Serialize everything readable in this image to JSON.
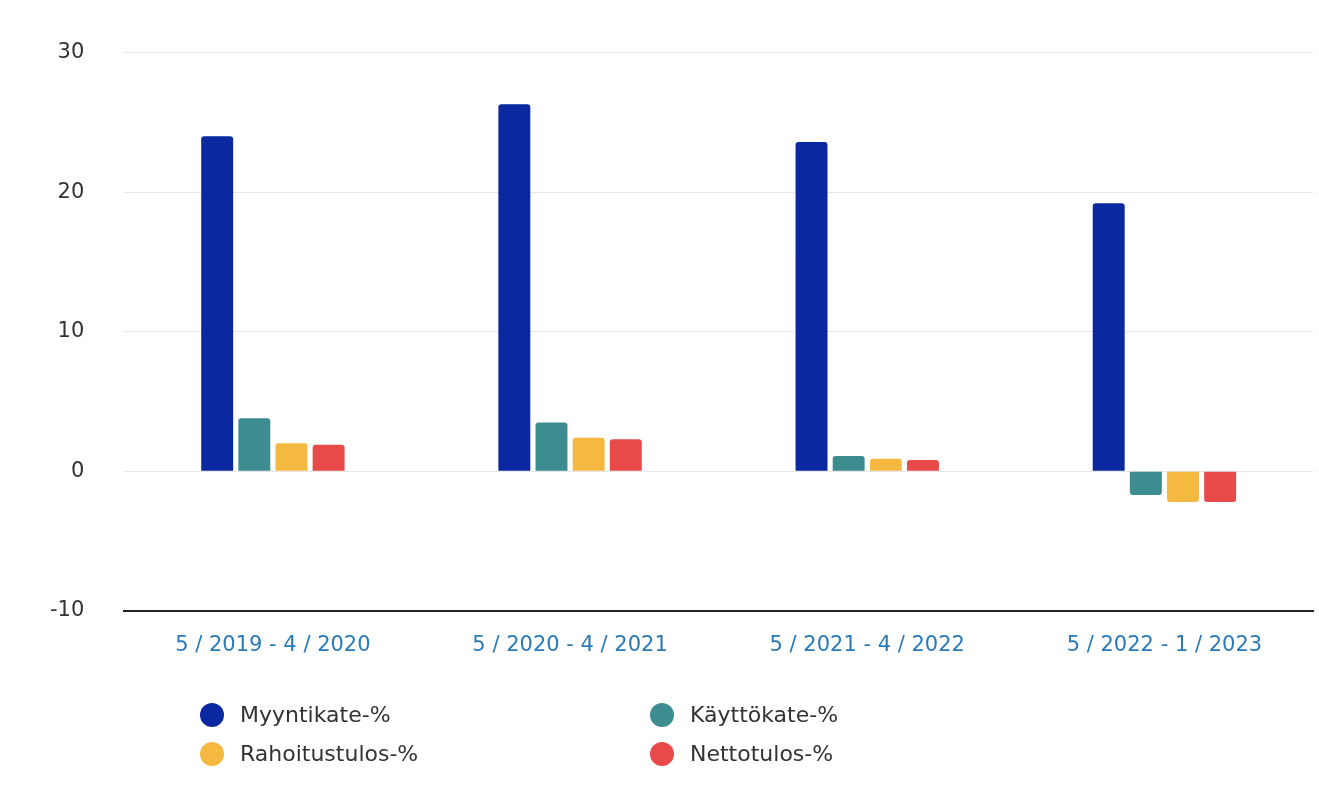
{
  "chart_data": {
    "type": "bar",
    "categories": [
      "5 / 2019 - 4 / 2020",
      "5 / 2020 - 4 / 2021",
      "5 / 2021 - 4 / 2022",
      "5 / 2022 - 1 / 2023"
    ],
    "series": [
      {
        "name": "Myyntikate-%",
        "color": "#0a28a0",
        "values": [
          24.0,
          26.3,
          23.6,
          19.2
        ]
      },
      {
        "name": "Käyttökate-%",
        "color": "#3d8c8f",
        "values": [
          3.8,
          3.5,
          1.1,
          -1.7
        ]
      },
      {
        "name": "Rahoitustulos-%",
        "color": "#f5b942",
        "values": [
          2.0,
          2.4,
          0.9,
          -2.2
        ]
      },
      {
        "name": "Nettotulos-%",
        "color": "#e84a4a",
        "values": [
          1.9,
          2.3,
          0.8,
          -2.2
        ]
      }
    ],
    "ylim": [
      -10,
      30
    ],
    "yticks": [
      -10,
      0,
      10,
      20,
      30
    ],
    "grid": "y",
    "legend": "bottom"
  }
}
